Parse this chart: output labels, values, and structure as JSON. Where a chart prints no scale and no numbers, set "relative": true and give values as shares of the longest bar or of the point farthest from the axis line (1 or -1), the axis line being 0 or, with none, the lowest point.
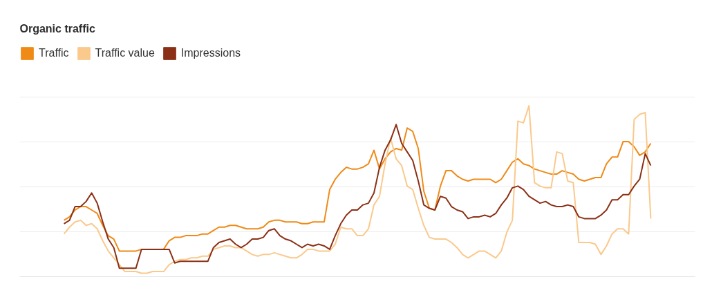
{
  "chart_data": {
    "type": "line",
    "title": "Organic traffic",
    "relative": true,
    "grid": "y",
    "legend": "top left",
    "categories": [
      null,
      null,
      null,
      null,
      null,
      null,
      null,
      null,
      null,
      null,
      null,
      null,
      null,
      null,
      null,
      null,
      null,
      null,
      null,
      null,
      null,
      null,
      null,
      null,
      null,
      null,
      null,
      null,
      null,
      null,
      null,
      null,
      null,
      null,
      null,
      null,
      null,
      null,
      null,
      null,
      null,
      null,
      null,
      null,
      null,
      null,
      null,
      null,
      null,
      null,
      null,
      null,
      null,
      null,
      null,
      null,
      null,
      null,
      null,
      null,
      null,
      null,
      null,
      null,
      null,
      null,
      null,
      null,
      null,
      null,
      null,
      null,
      null,
      null,
      null,
      null,
      null,
      null,
      null,
      null,
      null,
      null,
      null,
      null,
      null,
      null,
      null,
      null,
      null,
      null,
      null,
      null,
      null,
      null,
      null,
      null,
      null,
      null,
      null,
      null,
      null,
      null,
      null,
      null,
      null,
      null,
      null,
      null,
      null,
      null,
      null,
      null,
      null,
      null,
      null,
      null,
      null,
      null,
      null,
      null,
      null,
      null,
      null
    ],
    "series": [
      {
        "name": "Traffic",
        "color": "#ef8a17",
        "values": [
          null,
          null,
          null,
          null,
          null,
          null,
          null,
          null,
          0.33,
          0.35,
          0.39,
          0.41,
          0.41,
          0.39,
          0.37,
          0.3,
          0.24,
          0.22,
          0.15,
          0.15,
          0.15,
          0.15,
          0.16,
          0.16,
          0.16,
          0.16,
          0.16,
          0.21,
          0.23,
          0.23,
          0.24,
          0.24,
          0.24,
          0.25,
          0.25,
          0.27,
          0.29,
          0.29,
          0.3,
          0.3,
          0.29,
          0.28,
          0.28,
          0.28,
          0.29,
          0.32,
          0.33,
          0.33,
          0.32,
          0.32,
          0.32,
          0.31,
          0.31,
          0.32,
          0.32,
          0.32,
          0.51,
          0.57,
          0.61,
          0.64,
          0.63,
          0.63,
          0.64,
          0.66,
          0.74,
          0.63,
          0.69,
          0.73,
          0.75,
          0.74,
          0.87,
          0.85,
          0.75,
          0.5,
          0.4,
          0.39,
          0.53,
          0.62,
          0.62,
          0.59,
          0.57,
          0.56,
          0.57,
          0.57,
          0.57,
          0.57,
          0.55,
          0.57,
          0.62,
          0.67,
          0.69,
          0.66,
          0.65,
          0.63,
          0.62,
          0.61,
          0.6,
          0.6,
          0.62,
          0.61,
          0.6,
          0.57,
          0.56,
          0.57,
          0.58,
          0.58,
          0.66,
          0.7,
          0.7,
          0.79,
          0.79,
          0.76,
          0.71,
          0.73,
          0.78,
          null,
          null,
          null,
          null,
          null,
          null,
          null,
          null
        ]
      },
      {
        "name": "Traffic value",
        "color": "#fac98c",
        "values": [
          null,
          null,
          null,
          null,
          null,
          null,
          null,
          null,
          0.25,
          0.29,
          0.32,
          0.33,
          0.3,
          0.31,
          0.28,
          0.21,
          0.15,
          0.11,
          0.07,
          0.03,
          0.03,
          0.03,
          0.02,
          0.02,
          0.03,
          0.03,
          0.03,
          0.07,
          0.09,
          0.1,
          0.1,
          0.11,
          0.11,
          0.12,
          0.12,
          0.16,
          0.17,
          0.18,
          0.18,
          0.17,
          0.17,
          0.15,
          0.13,
          0.12,
          0.13,
          0.13,
          0.14,
          0.13,
          0.12,
          0.11,
          0.11,
          0.13,
          0.16,
          0.16,
          0.15,
          0.15,
          0.15,
          0.19,
          0.29,
          0.28,
          0.28,
          0.24,
          0.24,
          0.28,
          0.42,
          0.47,
          0.66,
          0.81,
          0.69,
          0.65,
          0.53,
          0.51,
          0.4,
          0.3,
          0.23,
          0.22,
          0.22,
          0.22,
          0.2,
          0.17,
          0.13,
          0.11,
          0.13,
          0.15,
          0.15,
          0.13,
          0.11,
          0.15,
          0.26,
          0.33,
          0.91,
          0.9,
          1.0,
          0.55,
          0.53,
          0.52,
          0.52,
          0.73,
          0.72,
          0.56,
          0.55,
          0.2,
          0.2,
          0.2,
          0.19,
          0.13,
          0.18,
          0.25,
          0.28,
          0.28,
          0.25,
          0.92,
          0.95,
          0.96,
          0.34,
          null,
          null,
          null,
          null,
          null,
          null,
          null,
          null
        ]
      },
      {
        "name": "Impressions",
        "color": "#8b3016",
        "values": [
          null,
          null,
          null,
          null,
          null,
          null,
          null,
          null,
          0.31,
          0.33,
          0.41,
          0.41,
          0.44,
          0.49,
          0.43,
          0.32,
          0.22,
          0.17,
          0.05,
          0.05,
          0.05,
          0.05,
          0.16,
          0.16,
          0.16,
          0.16,
          0.16,
          0.16,
          0.08,
          0.09,
          0.09,
          0.09,
          0.09,
          0.09,
          0.09,
          0.17,
          0.2,
          0.21,
          0.22,
          0.19,
          0.17,
          0.19,
          0.22,
          0.22,
          0.23,
          0.27,
          0.28,
          0.24,
          0.22,
          0.21,
          0.19,
          0.17,
          0.19,
          0.18,
          0.19,
          0.18,
          0.16,
          0.24,
          0.31,
          0.36,
          0.39,
          0.39,
          0.42,
          0.43,
          0.49,
          0.64,
          0.74,
          0.8,
          0.89,
          0.78,
          0.73,
          0.68,
          0.56,
          0.42,
          0.4,
          0.39,
          0.47,
          0.46,
          0.41,
          0.39,
          0.38,
          0.34,
          0.35,
          0.35,
          0.36,
          0.35,
          0.37,
          0.42,
          0.46,
          0.52,
          0.53,
          0.51,
          0.47,
          0.45,
          0.43,
          0.44,
          0.42,
          0.41,
          0.41,
          0.42,
          0.41,
          0.35,
          0.34,
          0.34,
          0.34,
          0.36,
          0.39,
          0.45,
          0.45,
          0.48,
          0.48,
          0.53,
          0.57,
          0.72,
          0.65,
          null,
          null,
          null,
          null,
          null,
          null,
          null,
          null
        ]
      }
    ]
  }
}
